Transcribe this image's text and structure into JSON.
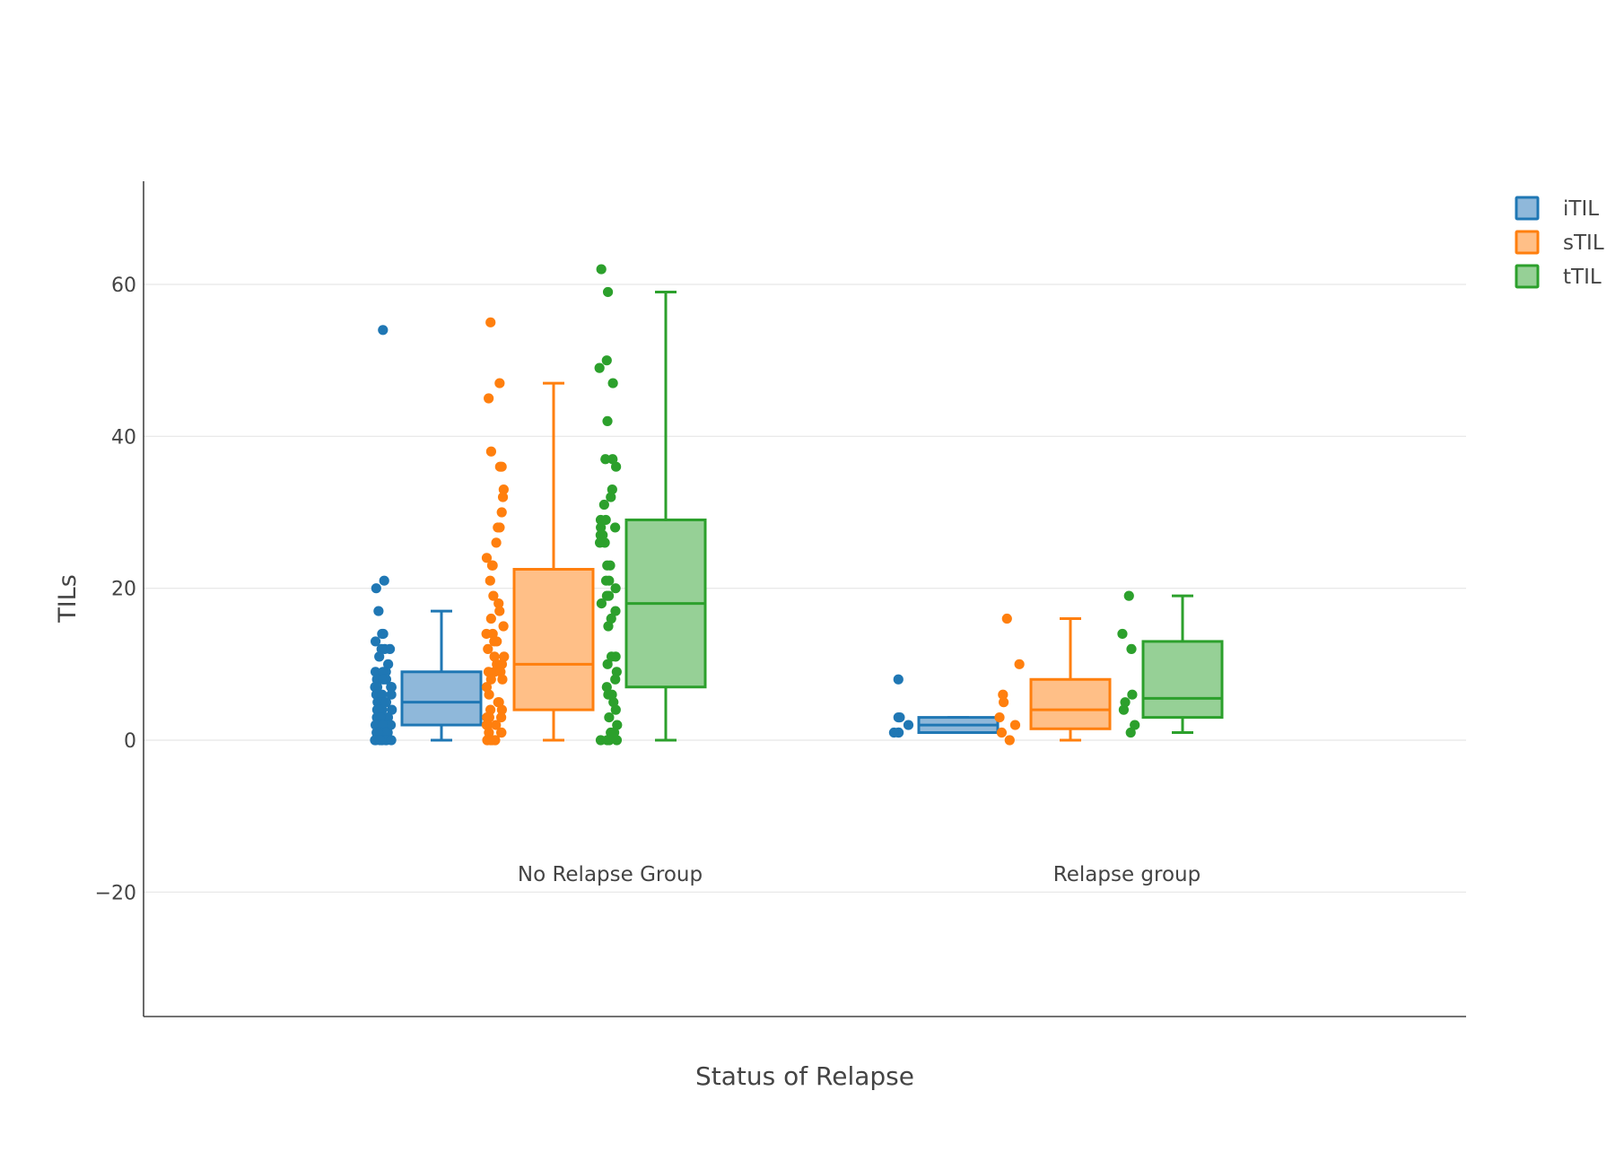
{
  "chart_data": {
    "type": "box",
    "xlabel": "Status of Relapse",
    "ylabel": "TILs",
    "ylim": [
      -36,
      73
    ],
    "yticks": [
      60,
      40,
      20,
      0,
      -20
    ],
    "ytick_labels": [
      "60",
      "40",
      "20",
      "0",
      "−20"
    ],
    "grid": true,
    "legend_position": "top-right",
    "categories": [
      "No Relapse Group",
      "Relapse group"
    ],
    "series": [
      {
        "name": "iTIL",
        "color": "#1f77b4",
        "fill": "#8fb8da",
        "boxes": [
          {
            "lowerfence": 0,
            "q1": 2,
            "median": 5,
            "q3": 9,
            "upperfence": 17
          },
          {
            "lowerfence": 1,
            "q1": 1,
            "median": 2,
            "q3": 3,
            "upperfence": 3
          }
        ],
        "points": [
          [
            54,
            21,
            20,
            17,
            14,
            14,
            13,
            12,
            12,
            12,
            11,
            10,
            9,
            9,
            9,
            8,
            8,
            8,
            8,
            8,
            7,
            7,
            7,
            7,
            6,
            6,
            6,
            5,
            5,
            5,
            5,
            4,
            4,
            4,
            4,
            4,
            3,
            3,
            3,
            3,
            3,
            2,
            2,
            2,
            2,
            2,
            2,
            1,
            1,
            1,
            1,
            1,
            1,
            1,
            0,
            0,
            0,
            0,
            0,
            0,
            0,
            0
          ],
          [
            8,
            3,
            3,
            2,
            1,
            1,
            1
          ]
        ]
      },
      {
        "name": "sTIL",
        "color": "#ff7f0e",
        "fill": "#ffbf87",
        "boxes": [
          {
            "lowerfence": 0,
            "q1": 4,
            "median": 10,
            "q3": 22.5,
            "upperfence": 47
          },
          {
            "lowerfence": 0,
            "q1": 1.5,
            "median": 4,
            "q3": 8,
            "upperfence": 16
          }
        ],
        "points": [
          [
            55,
            47,
            45,
            38,
            36,
            36,
            33,
            32,
            30,
            28,
            28,
            26,
            24,
            23,
            23,
            21,
            19,
            18,
            17,
            16,
            15,
            14,
            14,
            13,
            13,
            12,
            11,
            11,
            10,
            10,
            9,
            9,
            9,
            8,
            8,
            7,
            6,
            5,
            5,
            5,
            4,
            4,
            3,
            3,
            3,
            2,
            2,
            2,
            1,
            1,
            1,
            0,
            0,
            0,
            0,
            0,
            0,
            0
          ],
          [
            16,
            10,
            6,
            5,
            3,
            2,
            1,
            0
          ]
        ]
      },
      {
        "name": "tTIL",
        "color": "#2ca02c",
        "fill": "#96d096",
        "boxes": [
          {
            "lowerfence": 0,
            "q1": 7,
            "median": 18,
            "q3": 29,
            "upperfence": 59
          },
          {
            "lowerfence": 1,
            "q1": 3,
            "median": 5.5,
            "q3": 13,
            "upperfence": 19
          }
        ],
        "points": [
          [
            62,
            59,
            50,
            49,
            47,
            42,
            37,
            37,
            36,
            33,
            32,
            31,
            29,
            29,
            28,
            28,
            27,
            27,
            26,
            26,
            23,
            23,
            21,
            21,
            20,
            19,
            19,
            18,
            17,
            16,
            15,
            11,
            11,
            10,
            9,
            8,
            7,
            6,
            6,
            5,
            4,
            3,
            2,
            1,
            1,
            0,
            0,
            0,
            0
          ],
          [
            19,
            14,
            12,
            6,
            5,
            4,
            2,
            1
          ]
        ]
      }
    ]
  }
}
